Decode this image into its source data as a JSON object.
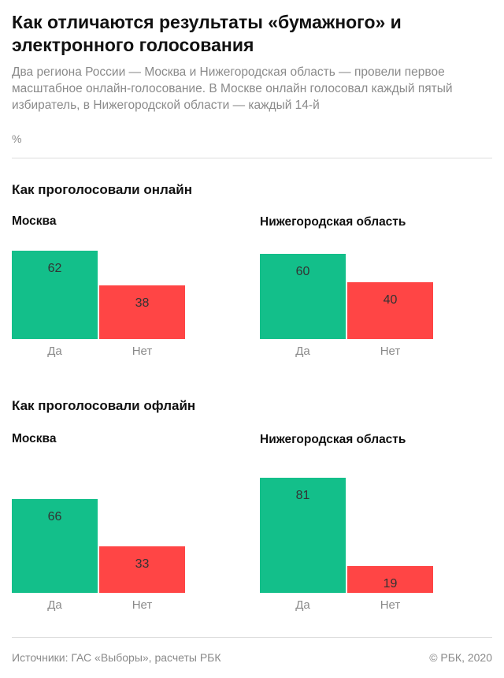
{
  "header": {
    "title": "Как отличаются результаты «бумажного» и электронного голосования",
    "subtitle": "Два региона России — Москва и Нижегородская область — провели первое масштабное онлайн-голосование. В Москве онлайн голосовал каждый пятый избиратель, в Нижегородской области — каждый 14-й",
    "unit": "%"
  },
  "sections": [
    {
      "title": "Как проголосовали онлайн"
    },
    {
      "title": "Как проголосовали офлайн"
    }
  ],
  "colors": {
    "yes": "#13bf8a",
    "no": "#ff4545"
  },
  "chart_data": [
    {
      "type": "bar",
      "section": "Как проголосовали онлайн",
      "title": "Москва",
      "categories": [
        "Да",
        "Нет"
      ],
      "values": [
        62,
        38
      ],
      "ylim": [
        0,
        100
      ]
    },
    {
      "type": "bar",
      "section": "Как проголосовали онлайн",
      "title": "Нижегородская область",
      "categories": [
        "Да",
        "Нет"
      ],
      "values": [
        60,
        40
      ],
      "ylim": [
        0,
        100
      ]
    },
    {
      "type": "bar",
      "section": "Как проголосовали офлайн",
      "title": "Москва",
      "categories": [
        "Да",
        "Нет"
      ],
      "values": [
        66,
        33
      ],
      "ylim": [
        0,
        100
      ]
    },
    {
      "type": "bar",
      "section": "Как проголосовали офлайн",
      "title": "Нижегородская область",
      "categories": [
        "Да",
        "Нет"
      ],
      "values": [
        81,
        19
      ],
      "ylim": [
        0,
        100
      ]
    }
  ],
  "footer": {
    "source": "Источники: ГАС «Выборы», расчеты РБК",
    "copyright": "© РБК, 2020"
  }
}
